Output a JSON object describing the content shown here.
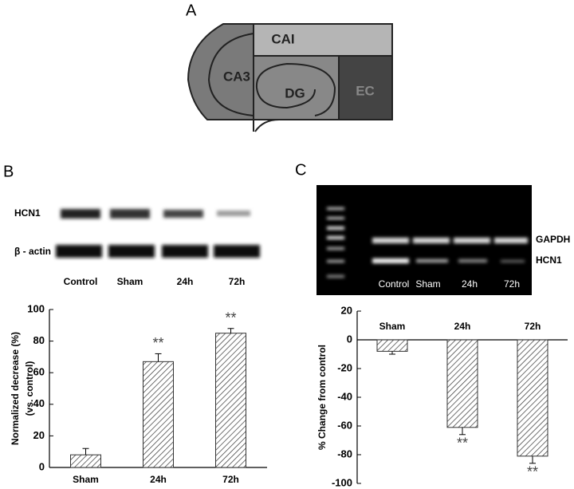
{
  "panel_labels": [
    "A",
    "B",
    "C"
  ],
  "diagram": {
    "regions": [
      "CAI",
      "CA3",
      "DG",
      "EC"
    ]
  },
  "western_blot": {
    "rows": [
      "HCN1",
      "β - actin"
    ],
    "lanes": [
      "Control",
      "Sham",
      "24h",
      "72h"
    ]
  },
  "gel": {
    "bands": [
      "GAPDH",
      "HCN1"
    ],
    "lanes": [
      "Control",
      "Sham",
      "24h",
      "72h"
    ]
  },
  "chart_data": [
    {
      "type": "bar",
      "y_label": [
        "Normalized decrease (%)",
        "(vs. control)"
      ],
      "categories": [
        "Sham",
        "24h",
        "72h"
      ],
      "values": [
        8,
        67,
        85
      ],
      "errors": [
        4,
        5,
        3
      ],
      "annotations": [
        {
          "text": "**",
          "x": "24h"
        },
        {
          "text": "**",
          "x": "72h"
        }
      ],
      "ylim": [
        0,
        100
      ],
      "yticks": [
        0,
        20,
        40,
        60,
        80,
        100
      ],
      "color": "#333333"
    },
    {
      "type": "bar",
      "y_label": [
        "% Change from control"
      ],
      "categories": [
        "Sham",
        "24h",
        "72h"
      ],
      "values": [
        -8,
        -61,
        -81
      ],
      "errors": [
        2,
        5,
        5
      ],
      "annotations": [
        {
          "text": "**",
          "x": "24h"
        },
        {
          "text": "**",
          "x": "72h"
        }
      ],
      "ylim": [
        -100,
        20
      ],
      "yticks": [
        -100,
        -80,
        -60,
        -40,
        -20,
        0,
        20
      ],
      "color": "#333333"
    }
  ]
}
